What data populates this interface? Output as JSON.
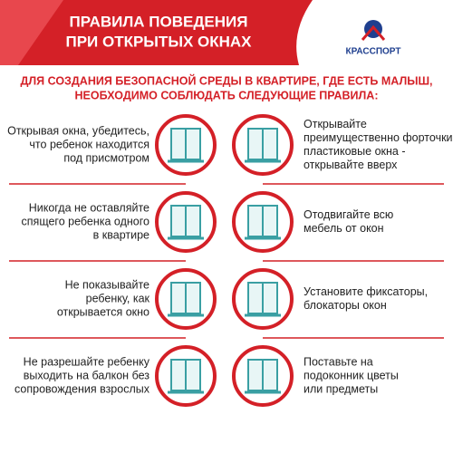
{
  "header": {
    "title_lines": [
      "ПРАВИЛА ПОВЕДЕНИЯ",
      "ПРИ ОТКРЫТЫХ ОКНАХ"
    ],
    "logo": "КРАССПОРТ"
  },
  "intro": [
    "ДЛЯ СОЗДАНИЯ БЕЗОПАСНОЙ СРЕДЫ В КВАРТИРЕ, ГДЕ ЕСТЬ МАЛЫШ,",
    "НЕОБХОДИМО СОБЛЮДАТЬ СЛЕДУЮЩИЕ ПРАВИЛА:"
  ],
  "rules": [
    {
      "left": [
        "Открывая окна, убедитесь,",
        "что ребенок находится",
        "под присмотром"
      ],
      "right": [
        "Открывайте",
        "преимущественно форточки,",
        "пластиковые окна -",
        "открывайте вверх"
      ]
    },
    {
      "left": [
        "Никогда не оставляйте",
        "спящего ребенка одного",
        "в квартире"
      ],
      "right": [
        "Отодвигайте всю",
        "мебель от окон"
      ]
    },
    {
      "left": [
        "Не показывайте",
        "ребенку, как",
        "открывается окно"
      ],
      "right": [
        "Установите фиксаторы,",
        "блокаторы окон"
      ]
    },
    {
      "left": [
        "Не  разрешайте ребенку",
        "выходить на балкон без",
        "сопровождения взрослых"
      ],
      "right": [
        "Поставьте на",
        "подоконник цветы",
        "или предметы"
      ]
    }
  ]
}
